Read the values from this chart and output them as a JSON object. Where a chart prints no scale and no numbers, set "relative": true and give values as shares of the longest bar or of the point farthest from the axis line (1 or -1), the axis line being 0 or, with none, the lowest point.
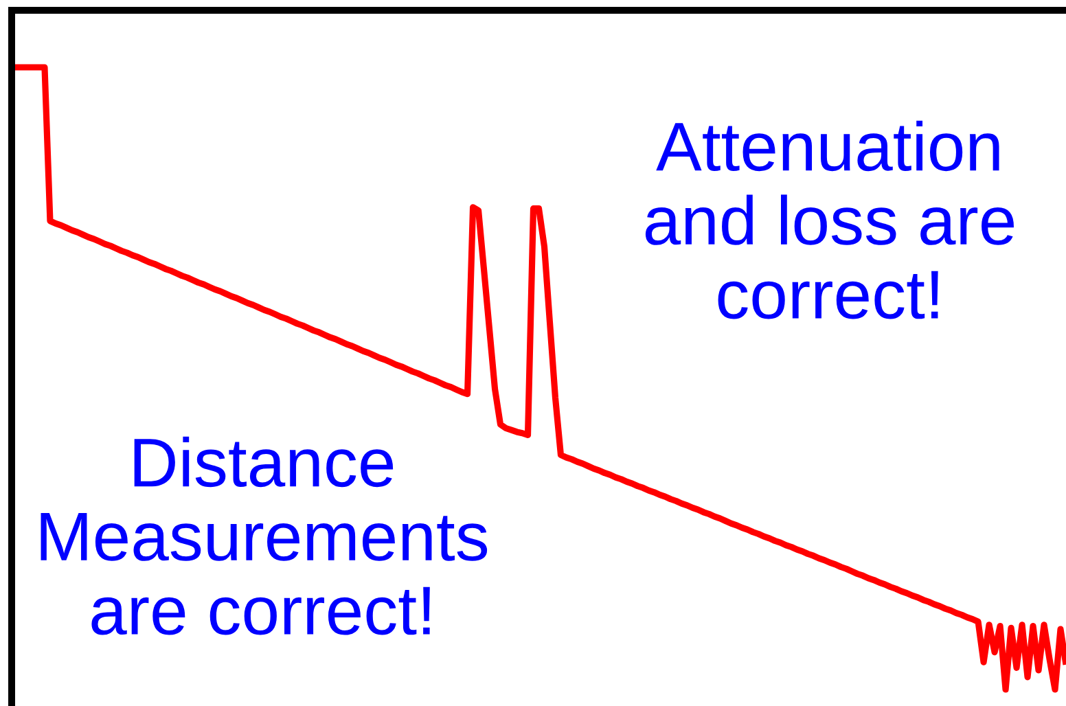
{
  "chart_data": {
    "type": "line",
    "relative": true,
    "categories": [
      null,
      null,
      null,
      null,
      null,
      null,
      null,
      null,
      null,
      null,
      null,
      null,
      null,
      null,
      null,
      null,
      null,
      null,
      null,
      null,
      null,
      null,
      null,
      null,
      null,
      null,
      null,
      null,
      null,
      null,
      null,
      null,
      null,
      null,
      null,
      null,
      null,
      null,
      null,
      null,
      null,
      null,
      null,
      null,
      null,
      null,
      null,
      null,
      null,
      null,
      null,
      null,
      null,
      null,
      null,
      null,
      null,
      null,
      null,
      null,
      null,
      null,
      null,
      null,
      null,
      null,
      null,
      null,
      null,
      null,
      null,
      null,
      null,
      null,
      null,
      null,
      null,
      null,
      null,
      null,
      null,
      null,
      null,
      null,
      null,
      null,
      null,
      null,
      null,
      null,
      null,
      null,
      null,
      null,
      null,
      null,
      null,
      null,
      null,
      null,
      null,
      null,
      null,
      null,
      null,
      null,
      null,
      null,
      null,
      null,
      null,
      null,
      null,
      null,
      null,
      null,
      null,
      null,
      null,
      null,
      null,
      null,
      null,
      null,
      null,
      null,
      null,
      null,
      null,
      null,
      null,
      null,
      null,
      null,
      null,
      null,
      null,
      null,
      null,
      null,
      null,
      null,
      null,
      null,
      null,
      null,
      null,
      null,
      null,
      null,
      null,
      null,
      null,
      null,
      null,
      null,
      null,
      null,
      null,
      null,
      null,
      null,
      null,
      null,
      null,
      null,
      null,
      null,
      null,
      null,
      null,
      null,
      null,
      null,
      null,
      null,
      null,
      null,
      null,
      null,
      null,
      null,
      null,
      null,
      null,
      null,
      null,
      null,
      null,
      null,
      null,
      null,
      null
    ],
    "series": [
      {
        "color": "#ff0000",
        "values": [
          1.0,
          1.0,
          1.0,
          1.0,
          1.0,
          1.0,
          1.0,
          0.753,
          0.749,
          0.746,
          0.742,
          0.738,
          0.735,
          0.731,
          0.727,
          0.724,
          0.72,
          0.716,
          0.713,
          0.709,
          0.705,
          0.702,
          0.698,
          0.695,
          0.691,
          0.687,
          0.684,
          0.68,
          0.676,
          0.673,
          0.669,
          0.665,
          0.662,
          0.658,
          0.654,
          0.651,
          0.647,
          0.643,
          0.64,
          0.636,
          0.632,
          0.629,
          0.625,
          0.621,
          0.618,
          0.614,
          0.61,
          0.607,
          0.603,
          0.599,
          0.596,
          0.592,
          0.588,
          0.585,
          0.581,
          0.577,
          0.574,
          0.57,
          0.566,
          0.563,
          0.559,
          0.555,
          0.552,
          0.548,
          0.544,
          0.541,
          0.537,
          0.533,
          0.53,
          0.526,
          0.522,
          0.519,
          0.515,
          0.511,
          0.508,
          0.504,
          0.5,
          0.497,
          0.493,
          0.489,
          0.486,
          0.482,
          0.478,
          0.475,
          0.775,
          0.77,
          0.675,
          0.579,
          0.483,
          0.426,
          0.42,
          0.417,
          0.414,
          0.412,
          0.409,
          0.773,
          0.773,
          0.712,
          0.59,
          0.469,
          0.377,
          0.373,
          0.37,
          0.366,
          0.363,
          0.359,
          0.355,
          0.352,
          0.348,
          0.345,
          0.341,
          0.338,
          0.334,
          0.331,
          0.327,
          0.324,
          0.32,
          0.317,
          0.313,
          0.31,
          0.306,
          0.303,
          0.299,
          0.296,
          0.292,
          0.289,
          0.285,
          0.282,
          0.278,
          0.275,
          0.271,
          0.267,
          0.264,
          0.26,
          0.257,
          0.253,
          0.25,
          0.246,
          0.243,
          0.239,
          0.236,
          0.232,
          0.229,
          0.225,
          0.222,
          0.218,
          0.215,
          0.211,
          0.208,
          0.204,
          0.201,
          0.197,
          0.194,
          0.19,
          0.186,
          0.183,
          0.179,
          0.176,
          0.172,
          0.169,
          0.165,
          0.162,
          0.158,
          0.155,
          0.151,
          0.148,
          0.144,
          0.141,
          0.137,
          0.134,
          0.13,
          0.127,
          0.123,
          0.12,
          0.116,
          0.113,
          0.109,
          0.044,
          0.104,
          0.06,
          0.102,
          0.0,
          0.099,
          0.035,
          0.104,
          0.02,
          0.102,
          0.031,
          0.104,
          0.049,
          0.0,
          0.097,
          0.04
        ]
      }
    ],
    "annotations": [
      "Attenuation\nand loss are\ncorrect!",
      "Distance\nMeasurements\nare correct!"
    ]
  }
}
